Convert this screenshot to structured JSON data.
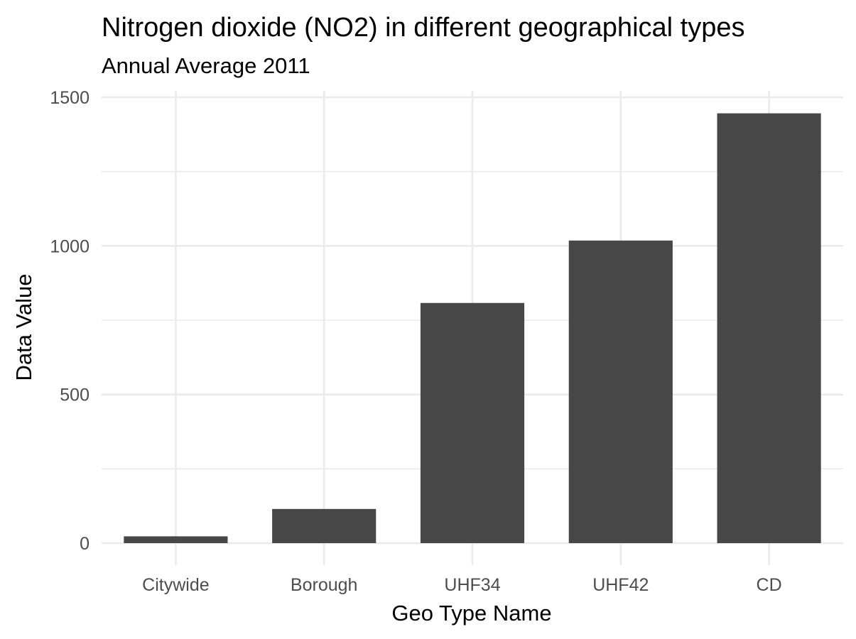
{
  "chart_data": {
    "type": "bar",
    "title": "Nitrogen dioxide (NO2) in different geographical types",
    "subtitle": "Annual Average 2011",
    "xlabel": "Geo Type Name",
    "ylabel": "Data Value",
    "categories": [
      "Citywide",
      "Borough",
      "UHF34",
      "UHF42",
      "CD"
    ],
    "values": [
      23,
      115,
      808,
      1018,
      1446
    ],
    "ylim": [
      0,
      1500
    ],
    "y_ticks": [
      0,
      500,
      1000,
      1500
    ],
    "grid": true,
    "bar_color": "#474747",
    "grid_color": "#ebebeb",
    "legend": "none"
  }
}
